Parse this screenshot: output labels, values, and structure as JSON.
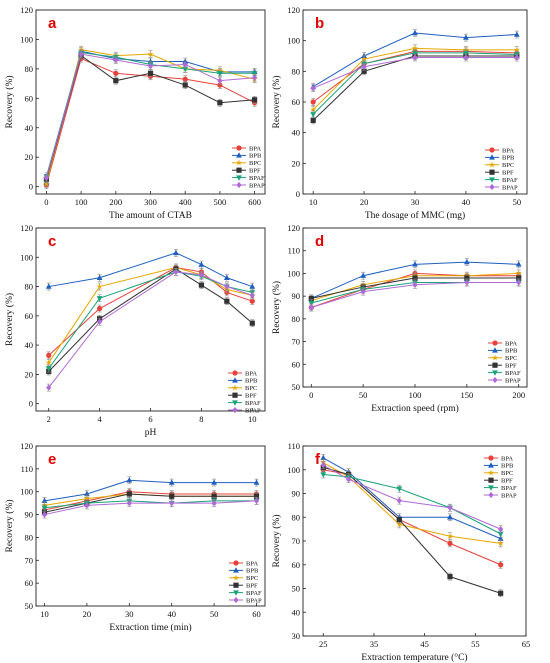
{
  "series_colors": {
    "BPA": "#e8413b",
    "BPB": "#1f5fbf",
    "BPC": "#e6a700",
    "BPF": "#333333",
    "BPAF": "#1aa37a",
    "BPAP": "#b06ad6"
  },
  "series_markers": {
    "BPA": "circle",
    "BPB": "triangle",
    "BPC": "star",
    "BPF": "square",
    "BPAF": "triangle-down",
    "BPAP": "diamond"
  },
  "chart_data": [
    {
      "panel": "a",
      "type": "line",
      "xlabel": "The amount of CTAB",
      "ylabel": "Recovery (%)",
      "x": [
        0,
        100,
        200,
        300,
        400,
        500,
        600
      ],
      "xticks": [
        0,
        100,
        200,
        300,
        400,
        500,
        600
      ],
      "xlim": [
        -30,
        630
      ],
      "ylim": [
        -5,
        120
      ],
      "yticks": [
        0,
        20,
        40,
        60,
        80,
        100,
        120
      ],
      "series": [
        {
          "name": "BPA",
          "values": [
            1,
            87,
            77,
            75,
            73,
            69,
            57
          ]
        },
        {
          "name": "BPB",
          "values": [
            3,
            92,
            87,
            85,
            85,
            78,
            78
          ]
        },
        {
          "name": "BPC",
          "values": [
            2,
            93,
            89,
            90,
            80,
            79,
            73
          ]
        },
        {
          "name": "BPF",
          "values": [
            5,
            89,
            72,
            77,
            69,
            57,
            59
          ]
        },
        {
          "name": "BPAF",
          "values": [
            7,
            91,
            88,
            83,
            80,
            77,
            77
          ]
        },
        {
          "name": "BPAP",
          "values": [
            6,
            90,
            86,
            82,
            83,
            72,
            74
          ]
        }
      ]
    },
    {
      "panel": "b",
      "type": "line",
      "xlabel": "The dosage of MMC (mg)",
      "ylabel": "Recovery (%)",
      "x": [
        10,
        20,
        30,
        40,
        50
      ],
      "xticks": [
        10,
        20,
        30,
        40,
        50
      ],
      "xlim": [
        8,
        52
      ],
      "ylim": [
        0,
        120
      ],
      "yticks": [
        0,
        20,
        40,
        60,
        80,
        100,
        120
      ],
      "series": [
        {
          "name": "BPA",
          "values": [
            60,
            85,
            93,
            93,
            92
          ]
        },
        {
          "name": "BPB",
          "values": [
            70,
            90,
            105,
            102,
            104
          ]
        },
        {
          "name": "BPC",
          "values": [
            55,
            88,
            95,
            94,
            94
          ]
        },
        {
          "name": "BPF",
          "values": [
            48,
            80,
            90,
            90,
            90
          ]
        },
        {
          "name": "BPAF",
          "values": [
            52,
            85,
            92,
            92,
            91
          ]
        },
        {
          "name": "BPAP",
          "values": [
            69,
            83,
            89,
            89,
            89
          ]
        }
      ]
    },
    {
      "panel": "c",
      "type": "line",
      "xlabel": "pH",
      "ylabel": "Recovery (%)",
      "x": [
        2,
        4,
        7,
        8,
        9,
        10
      ],
      "xticks": [
        2,
        4,
        6,
        8,
        10
      ],
      "xlim": [
        1.5,
        10.5
      ],
      "ylim": [
        -5,
        120
      ],
      "yticks": [
        0,
        20,
        40,
        60,
        80,
        100,
        120
      ],
      "series": [
        {
          "name": "BPA",
          "values": [
            33,
            65,
            93,
            90,
            76,
            70
          ]
        },
        {
          "name": "BPB",
          "values": [
            80,
            86,
            103,
            95,
            86,
            80
          ]
        },
        {
          "name": "BPC",
          "values": [
            28,
            80,
            93,
            88,
            78,
            74
          ]
        },
        {
          "name": "BPF",
          "values": [
            22,
            58,
            92,
            81,
            70,
            55
          ]
        },
        {
          "name": "BPAF",
          "values": [
            24,
            72,
            90,
            87,
            80,
            76
          ]
        },
        {
          "name": "BPAP",
          "values": [
            11,
            56,
            90,
            88,
            80,
            74
          ]
        }
      ]
    },
    {
      "panel": "d",
      "type": "line",
      "xlabel": "Extraction speed  (rpm)",
      "ylabel": "Recovery (%)",
      "x": [
        0,
        50,
        100,
        150,
        200
      ],
      "xticks": [
        0,
        50,
        100,
        150,
        200
      ],
      "xlim": [
        -8,
        208
      ],
      "ylim": [
        50,
        120
      ],
      "yticks": [
        50,
        60,
        70,
        80,
        90,
        100,
        110,
        120
      ],
      "series": [
        {
          "name": "BPA",
          "values": [
            85,
            93,
            100,
            99,
            99
          ]
        },
        {
          "name": "BPB",
          "values": [
            89,
            99,
            104,
            105,
            104
          ]
        },
        {
          "name": "BPC",
          "values": [
            88,
            95,
            99,
            99,
            100
          ]
        },
        {
          "name": "BPF",
          "values": [
            89,
            94,
            98,
            98,
            98
          ]
        },
        {
          "name": "BPAF",
          "values": [
            87,
            93,
            96,
            96,
            96
          ]
        },
        {
          "name": "BPAP",
          "values": [
            85,
            92,
            95,
            96,
            96
          ]
        }
      ]
    },
    {
      "panel": "e",
      "type": "line",
      "xlabel": "Extraction time  (min)",
      "ylabel": "Recovery (%)",
      "x": [
        10,
        20,
        30,
        40,
        50,
        60
      ],
      "xticks": [
        10,
        20,
        30,
        40,
        50,
        60
      ],
      "xlim": [
        8,
        62
      ],
      "ylim": [
        50,
        120
      ],
      "yticks": [
        50,
        60,
        70,
        80,
        90,
        100,
        110,
        120
      ],
      "series": [
        {
          "name": "BPA",
          "values": [
            92,
            96,
            100,
            99,
            99,
            99
          ]
        },
        {
          "name": "BPB",
          "values": [
            96,
            99,
            105,
            104,
            104,
            104
          ]
        },
        {
          "name": "BPC",
          "values": [
            94,
            97,
            99,
            98,
            98,
            98
          ]
        },
        {
          "name": "BPF",
          "values": [
            91,
            95,
            99,
            98,
            98,
            98
          ]
        },
        {
          "name": "BPAF",
          "values": [
            93,
            95,
            96,
            95,
            96,
            96
          ]
        },
        {
          "name": "BPAP",
          "values": [
            90,
            94,
            95,
            95,
            95,
            96
          ]
        }
      ]
    },
    {
      "panel": "f",
      "type": "line",
      "xlabel": "Extraction temperature  (°C)",
      "ylabel": "Recovery (%)",
      "x": [
        25,
        30,
        40,
        50,
        60
      ],
      "xticks": [
        25,
        35,
        45,
        55,
        65
      ],
      "xlim": [
        21,
        65
      ],
      "ylim": [
        30,
        110
      ],
      "yticks": [
        30,
        40,
        50,
        60,
        70,
        80,
        90,
        100,
        110
      ],
      "series": [
        {
          "name": "BPA",
          "values": [
            100,
            98,
            79,
            69,
            60
          ]
        },
        {
          "name": "BPB",
          "values": [
            105,
            99,
            80,
            80,
            71
          ]
        },
        {
          "name": "BPC",
          "values": [
            103,
            97,
            77,
            72,
            69
          ]
        },
        {
          "name": "BPF",
          "values": [
            101,
            98,
            79,
            55,
            48
          ]
        },
        {
          "name": "BPAF",
          "values": [
            98,
            97,
            92,
            84,
            73
          ]
        },
        {
          "name": "BPAP",
          "values": [
            102,
            96,
            87,
            84,
            75
          ]
        }
      ]
    }
  ]
}
